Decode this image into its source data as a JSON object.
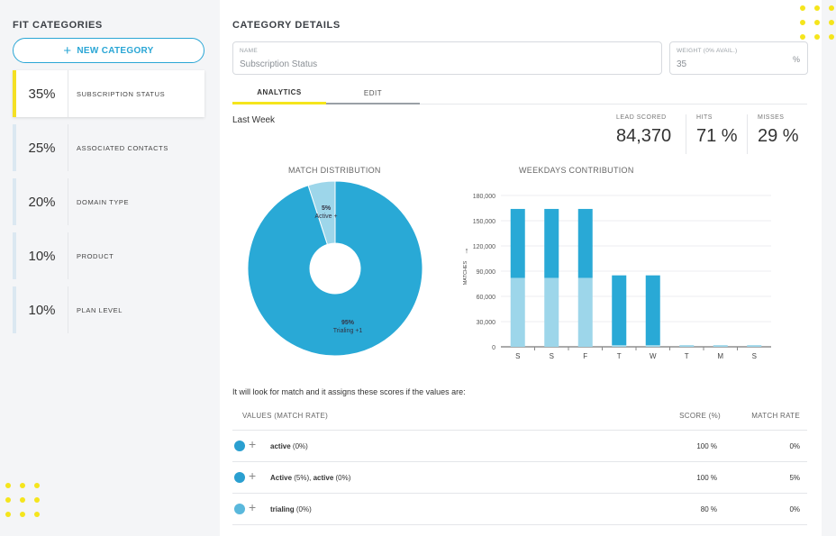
{
  "sidebar": {
    "title": "FIT CATEGORIES",
    "new_category_label": "NEW CATEGORY",
    "items": [
      {
        "pct": "35%",
        "label": "SUBSCRIPTION STATUS"
      },
      {
        "pct": "25%",
        "label": "ASSOCIATED CONTACTS"
      },
      {
        "pct": "20%",
        "label": "DOMAIN TYPE"
      },
      {
        "pct": "10%",
        "label": "PRODUCT"
      },
      {
        "pct": "10%",
        "label": "PLAN LEVEL"
      }
    ]
  },
  "main": {
    "title": "CATEGORY DETAILS",
    "name_field": {
      "label": "NAME",
      "value": "Subscription Status"
    },
    "weight_field": {
      "label": "WEIGHT (0% AVAIL.)",
      "value": "35",
      "suffix": "%"
    },
    "tabs": [
      {
        "label": "ANALYTICS"
      },
      {
        "label": "EDIT"
      }
    ],
    "period": "Last Week",
    "stats": [
      {
        "label": "LEAD SCORED",
        "value": "84,370"
      },
      {
        "label": "HITS",
        "value": "71 %"
      },
      {
        "label": "MISSES",
        "value": "29 %"
      }
    ],
    "score_intro": "It will look for match and it assigns these scores if the values are:",
    "table": {
      "headers": {
        "values": "VALUES (MATCH RATE)",
        "score": "SCORE (%)",
        "rate": "MATCH RATE"
      },
      "rows": [
        {
          "value_html": [
            "active",
            " (0%)"
          ],
          "score": "100 %",
          "rate": "0%",
          "color": "#2a9fd0"
        },
        {
          "value_html": [
            "Active",
            " (5%), ",
            "active",
            " (0%)"
          ],
          "score": "100 %",
          "rate": "5%",
          "color": "#2a9fd0"
        },
        {
          "value_html": [
            "trialing",
            " (0%)"
          ],
          "score": "80 %",
          "rate": "0%",
          "color": "#5ab8dc"
        }
      ]
    }
  },
  "chart_data": [
    {
      "type": "pie",
      "title": "MATCH DISTRIBUTION",
      "slices": [
        {
          "label": "Trialing +1",
          "pct_label": "95%",
          "value": 95,
          "color": "#29a9d6"
        },
        {
          "label": "Active +",
          "pct_label": "5%",
          "value": 5,
          "color": "#9dd6ea"
        }
      ]
    },
    {
      "type": "bar",
      "title": "WEEKDAYS CONTRIBUTION",
      "ylabel": "MATCHES",
      "categories": [
        "S",
        "S",
        "F",
        "T",
        "W",
        "T",
        "M",
        "S"
      ],
      "ylim": [
        0,
        180000
      ],
      "yticks": [
        "0",
        "30,000",
        "60,000",
        "90,000",
        "120,000",
        "150,000",
        "180,000"
      ],
      "series": [
        {
          "name": "lower",
          "color": "#9dd6ea",
          "values": [
            82000,
            82000,
            82000,
            2000,
            2000,
            2000,
            2000,
            2000
          ]
        },
        {
          "name": "upper",
          "color": "#29a9d6",
          "values": [
            82000,
            82000,
            82000,
            83000,
            83000,
            0,
            0,
            0
          ]
        }
      ]
    }
  ],
  "colors": {
    "accent": "#2aa6d5",
    "highlight": "#f5e51c"
  }
}
